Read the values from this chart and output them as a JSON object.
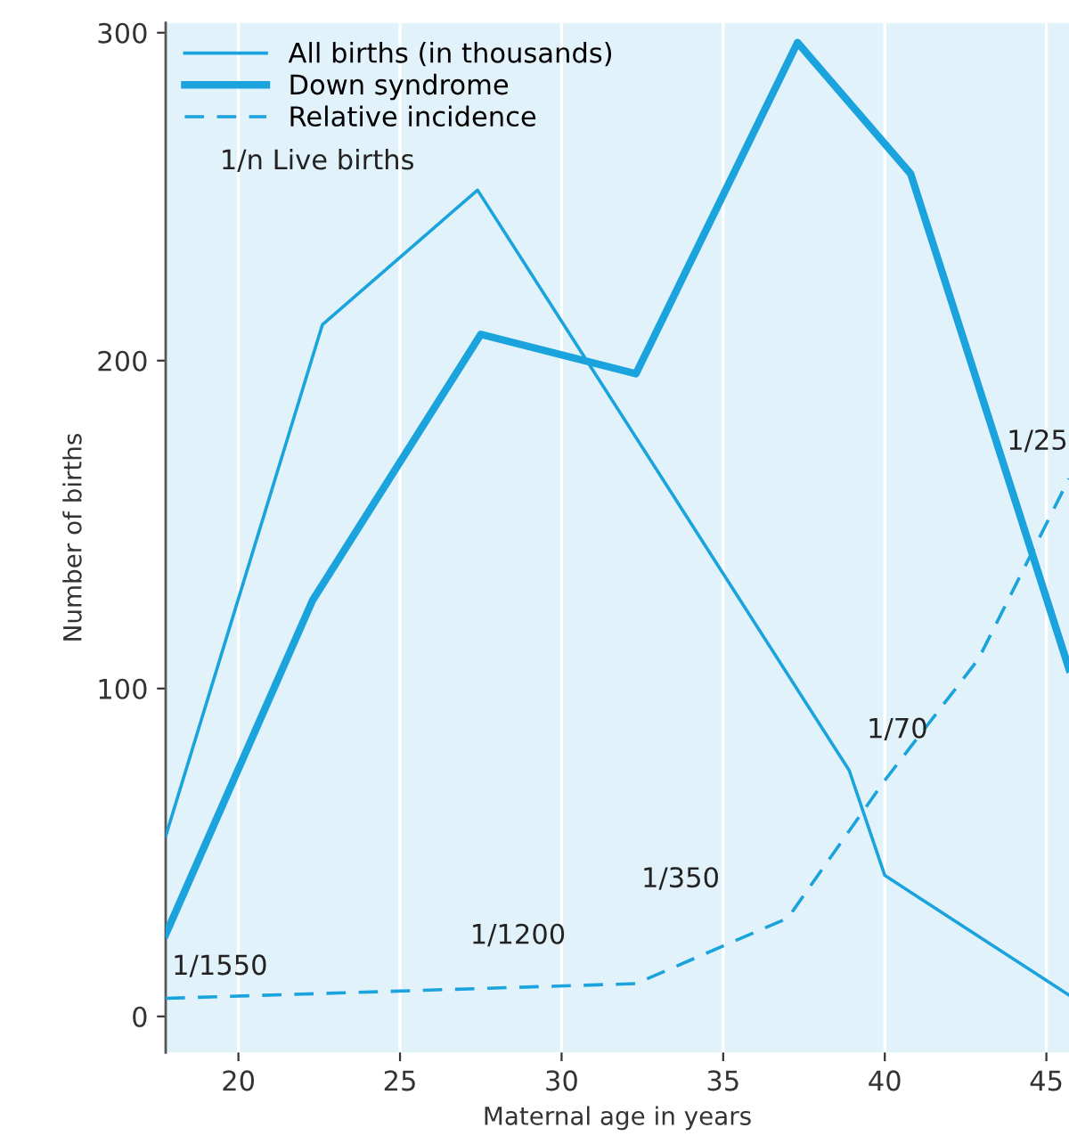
{
  "chart_data": {
    "type": "line",
    "xlabel": "Maternal age in years",
    "ylabel": "Number of births",
    "xlim": [
      17.75,
      45.7
    ],
    "ylim": [
      -11,
      303
    ],
    "xticks": [
      20,
      25,
      30,
      35,
      40,
      45
    ],
    "yticks": [
      0,
      100,
      200,
      300
    ],
    "grid": "x",
    "legend": "top left",
    "marker": "none",
    "series": [
      {
        "name": "All births (in thousands)",
        "color": "#1aa3dc",
        "line_style": "solid",
        "x": [
          17.75,
          22.6,
          27.4,
          38.9,
          40,
          45.7
        ],
        "values": [
          55,
          211,
          252,
          75,
          43,
          6.5
        ]
      },
      {
        "name": "Down syndrome",
        "color": "#1aa3dc",
        "line_style": "solid",
        "x": [
          17.75,
          22.3,
          27.5,
          32.3,
          37.3,
          40.8,
          45.7
        ],
        "values": [
          25,
          127,
          208,
          196,
          297,
          257,
          106
        ]
      },
      {
        "name": "Relative incidence",
        "color": "#1aa3dc",
        "line_style": "dashed",
        "x": [
          17.75,
          32.3,
          37,
          40,
          42.9,
          45.7
        ],
        "values": [
          5.5,
          10,
          30,
          72,
          109,
          164
        ]
      }
    ],
    "annotations": [
      "1/n Live births",
      "1/1550",
      "1/1200",
      "1/350",
      "1/70",
      "1/25"
    ]
  }
}
